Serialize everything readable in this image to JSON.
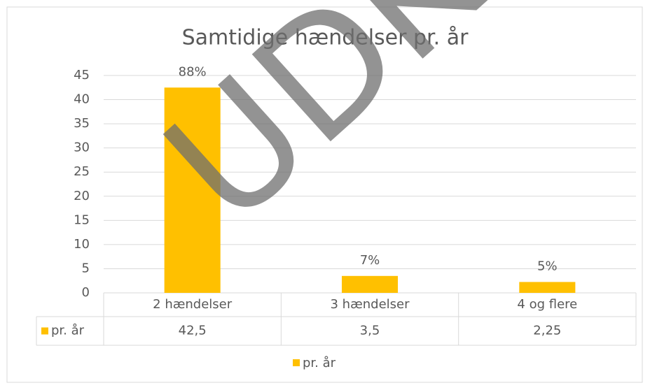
{
  "chart_data": {
    "type": "bar",
    "title": "Samtidige hændelser pr. år",
    "categories": [
      "2 hændelser",
      "3 hændelser",
      "4 og flere"
    ],
    "series": [
      {
        "name": "pr. år",
        "color": "#ffc000",
        "values": [
          42.5,
          3.5,
          2.25
        ],
        "value_labels": [
          "42,5",
          "3,5",
          "2,25"
        ],
        "share_labels": [
          "88%",
          "7%",
          "5%"
        ]
      }
    ],
    "ylim": [
      0,
      45
    ],
    "yticks": [
      0,
      5,
      10,
      15,
      20,
      25,
      30,
      35,
      40,
      45
    ],
    "grid": true,
    "legend": "bottom",
    "watermark": "UDKAST"
  }
}
